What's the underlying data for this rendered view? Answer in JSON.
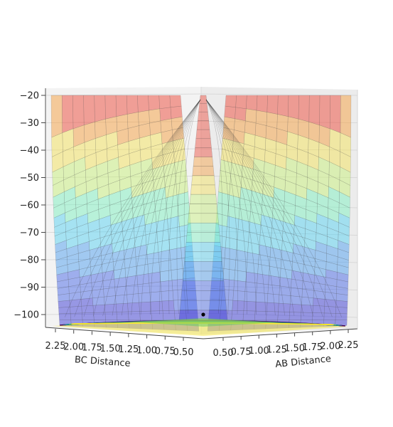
{
  "chart_data": {
    "type": "surface",
    "title": "",
    "xlabel": "AB Distance",
    "ylabel": "BC Distance",
    "zlabel": "",
    "z_ticks": [
      "−20",
      "−30",
      "−40",
      "−50",
      "−60",
      "−70",
      "−80",
      "−90",
      "−100"
    ],
    "z_tick_values": [
      -20,
      -30,
      -40,
      -50,
      -60,
      -70,
      -80,
      -90,
      -100
    ],
    "zlim": [
      -105,
      -20
    ],
    "x_ticks": [
      "0.50",
      "0.75",
      "1.00",
      "1.25",
      "1.50",
      "1.75",
      "2.00",
      "2.25"
    ],
    "x_tick_values": [
      0.5,
      0.75,
      1.0,
      1.25,
      1.5,
      1.75,
      2.0,
      2.25
    ],
    "y_ticks": [
      "2.25",
      "2.00",
      "1.75",
      "1.50",
      "1.25",
      "1.00",
      "0.75",
      "0.50"
    ],
    "y_tick_values": [
      2.25,
      2.0,
      1.75,
      1.5,
      1.25,
      1.0,
      0.75,
      0.5
    ],
    "colormap": "jet",
    "contour_colormap": "viridis",
    "grid": true,
    "marker_color": "#000000",
    "surface_color_bands": [
      {
        "z_from": -105,
        "z_to": -95,
        "color": "#3b3bd6"
      },
      {
        "z_from": -95,
        "z_to": -85,
        "color": "#4a6ae8"
      },
      {
        "z_from": -85,
        "z_to": -75,
        "color": "#4fa0f0"
      },
      {
        "z_from": -75,
        "z_to": -65,
        "color": "#58d2f2"
      },
      {
        "z_from": -65,
        "z_to": -55,
        "color": "#7ef0c0"
      },
      {
        "z_from": -55,
        "z_to": -45,
        "color": "#c8f07a"
      },
      {
        "z_from": -45,
        "z_to": -35,
        "color": "#f4e25a"
      },
      {
        "z_from": -35,
        "z_to": -27,
        "color": "#f6a040"
      },
      {
        "z_from": -27,
        "z_to": -20,
        "color": "#ee4a3a"
      }
    ]
  }
}
